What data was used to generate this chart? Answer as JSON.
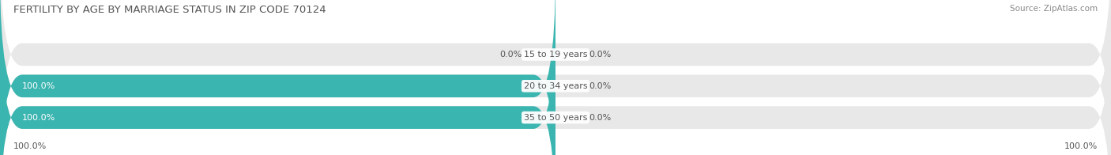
{
  "title": "FERTILITY BY AGE BY MARRIAGE STATUS IN ZIP CODE 70124",
  "source": "Source: ZipAtlas.com",
  "categories": [
    "15 to 19 years",
    "20 to 34 years",
    "35 to 50 years"
  ],
  "married_values": [
    0.0,
    100.0,
    100.0
  ],
  "unmarried_values": [
    0.0,
    0.0,
    0.0
  ],
  "married_color": "#3bb5b0",
  "unmarried_color": "#f4a7b9",
  "bar_bg_color": "#e8e8e8",
  "title_fontsize": 9.5,
  "source_fontsize": 7.5,
  "label_fontsize": 8,
  "category_fontsize": 8,
  "legend_fontsize": 8.5,
  "title_color": "#555555",
  "source_color": "#888888",
  "label_color_white": "#ffffff",
  "label_color_dark": "#555555",
  "bg_color": "#ffffff",
  "bottom_left_label": "100.0%",
  "bottom_right_label": "100.0%"
}
